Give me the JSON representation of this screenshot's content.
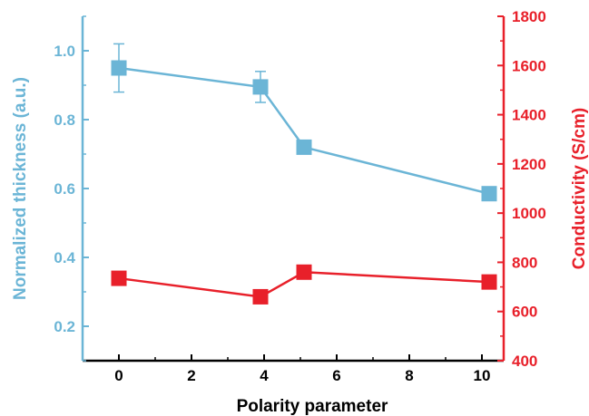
{
  "chart_data": {
    "type": "line",
    "title": "",
    "xlabel": "Polarity parameter",
    "ylabel_left": "Normalized thickness (a.u.)",
    "ylabel_right": "Conductivity (S/cm)",
    "xlim": [
      -1,
      10.6
    ],
    "ylim_left": [
      0.1,
      1.1
    ],
    "ylim_right": [
      400,
      1800
    ],
    "x_ticks": [
      0,
      2,
      4,
      6,
      8,
      10
    ],
    "x_tick_labels": [
      "0",
      "2",
      "4",
      "6",
      "8",
      "10"
    ],
    "y_left_ticks": [
      0.2,
      0.4,
      0.6,
      0.8,
      1.0
    ],
    "y_left_tick_labels": [
      "0.2",
      "0.4",
      "0.6",
      "0.8",
      "1.0"
    ],
    "y_right_ticks": [
      400,
      600,
      800,
      1000,
      1200,
      1400,
      1600,
      1800
    ],
    "y_right_tick_labels": [
      "400",
      "600",
      "800",
      "1000",
      "1200",
      "1400",
      "1600",
      "1800"
    ],
    "grid": false,
    "legend": "none",
    "series": [
      {
        "axis": "left",
        "color": "#6bb5d6",
        "marker": "square",
        "x": [
          0,
          3.9,
          5.1,
          10.2
        ],
        "y": [
          0.95,
          0.895,
          0.72,
          0.585
        ],
        "error": [
          0.07,
          0.045,
          0.015,
          0.01
        ]
      },
      {
        "axis": "right",
        "color": "#e8202a",
        "marker": "square",
        "x": [
          0,
          3.9,
          5.1,
          10.2
        ],
        "y": [
          735,
          660,
          760,
          720
        ]
      }
    ]
  }
}
